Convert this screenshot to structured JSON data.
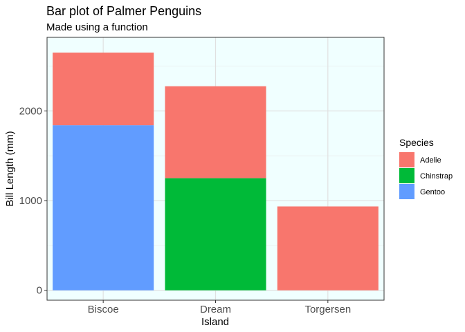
{
  "chart_data": {
    "type": "bar",
    "stacked": true,
    "title": "Bar plot of Palmer Penguins",
    "subtitle": "Made using a function",
    "xlabel": "Island",
    "ylabel": "Bill Length (mm)",
    "categories": [
      "Biscoe",
      "Dream",
      "Torgersen"
    ],
    "series": [
      {
        "name": "Adelie",
        "color": "#F8766D",
        "values": [
          810,
          1025,
          935
        ]
      },
      {
        "name": "Chinstrap",
        "color": "#00BA38",
        "values": [
          0,
          1250,
          0
        ]
      },
      {
        "name": "Gentoo",
        "color": "#619CFF",
        "values": [
          1840,
          0,
          0
        ]
      }
    ],
    "stack_order_bottom_to_top": [
      "Gentoo",
      "Chinstrap",
      "Adelie"
    ],
    "ylim": [
      -110,
      2820
    ],
    "yticks": [
      0,
      1000,
      2000
    ],
    "ytick_labels": [
      "0",
      "1000",
      "2000"
    ],
    "legend_title": "Species",
    "legend_position": "right",
    "panel_background": "#F0FFFF",
    "grid": true
  }
}
